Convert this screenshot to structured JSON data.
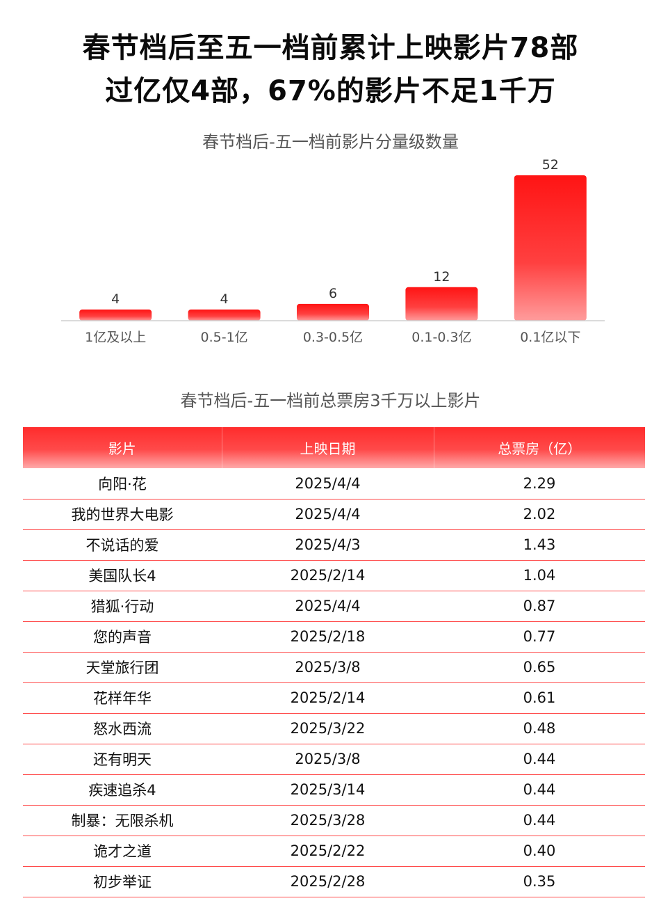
{
  "headline": {
    "line1": "春节档后至五一档前累计上映影片78部",
    "line2": "过亿仅4部，67%的影片不足1千万"
  },
  "chart_data": {
    "type": "bar",
    "title": "春节档后-五一档前影片分量级数量",
    "categories": [
      "1亿及以上",
      "0.5-1亿",
      "0.3-0.5亿",
      "0.1-0.3亿",
      "0.1亿以下"
    ],
    "values": [
      4,
      4,
      6,
      12,
      52
    ],
    "ylim": [
      0,
      52
    ],
    "grid": false,
    "legend": "none",
    "bar_color": "#ff2020"
  },
  "table": {
    "title": "春节档后-五一档前总票房3千万以上影片",
    "headers": [
      "影片",
      "上映日期",
      "总票房（亿）"
    ],
    "rows": [
      [
        "向阳·花",
        "2025/4/4",
        "2.29"
      ],
      [
        "我的世界大电影",
        "2025/4/4",
        "2.02"
      ],
      [
        "不说话的爱",
        "2025/4/3",
        "1.43"
      ],
      [
        "美国队长4",
        "2025/2/14",
        "1.04"
      ],
      [
        "猎狐·行动",
        "2025/4/4",
        "0.87"
      ],
      [
        "您的声音",
        "2025/2/18",
        "0.77"
      ],
      [
        "天堂旅行团",
        "2025/3/8",
        "0.65"
      ],
      [
        "花样年华",
        "2025/2/14",
        "0.61"
      ],
      [
        "怒水西流",
        "2025/3/22",
        "0.48"
      ],
      [
        "还有明天",
        "2025/3/8",
        "0.44"
      ],
      [
        "疾速追杀4",
        "2025/3/14",
        "0.44"
      ],
      [
        "制暴：无限杀机",
        "2025/3/28",
        "0.44"
      ],
      [
        "诡才之道",
        "2025/2/22",
        "0.40"
      ],
      [
        "初步举证",
        "2025/2/28",
        "0.35"
      ]
    ]
  }
}
